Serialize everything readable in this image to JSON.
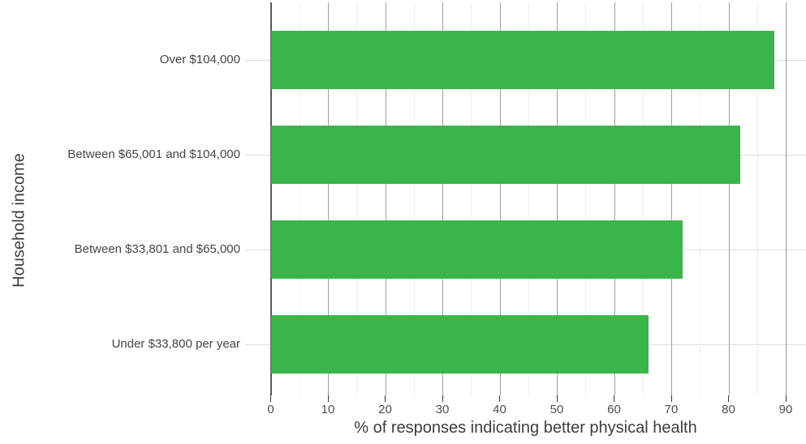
{
  "chart_data": {
    "type": "bar",
    "orientation": "horizontal",
    "title": "",
    "xlabel": "% of responses indicating better physical health",
    "ylabel": "Household income",
    "categories": [
      "Over $104,000",
      "Between $65,001 and $104,000",
      "Between $33,801 and $65,000",
      "Under $33,800 per year"
    ],
    "values": [
      88,
      82,
      72,
      66
    ],
    "xlim": [
      0,
      90
    ],
    "x_major_ticks": [
      0,
      10,
      20,
      30,
      40,
      50,
      60,
      70,
      80,
      90
    ],
    "x_minor_tick_step": 5,
    "grid": true,
    "legend": false,
    "bar_color": "#3ab54a"
  }
}
